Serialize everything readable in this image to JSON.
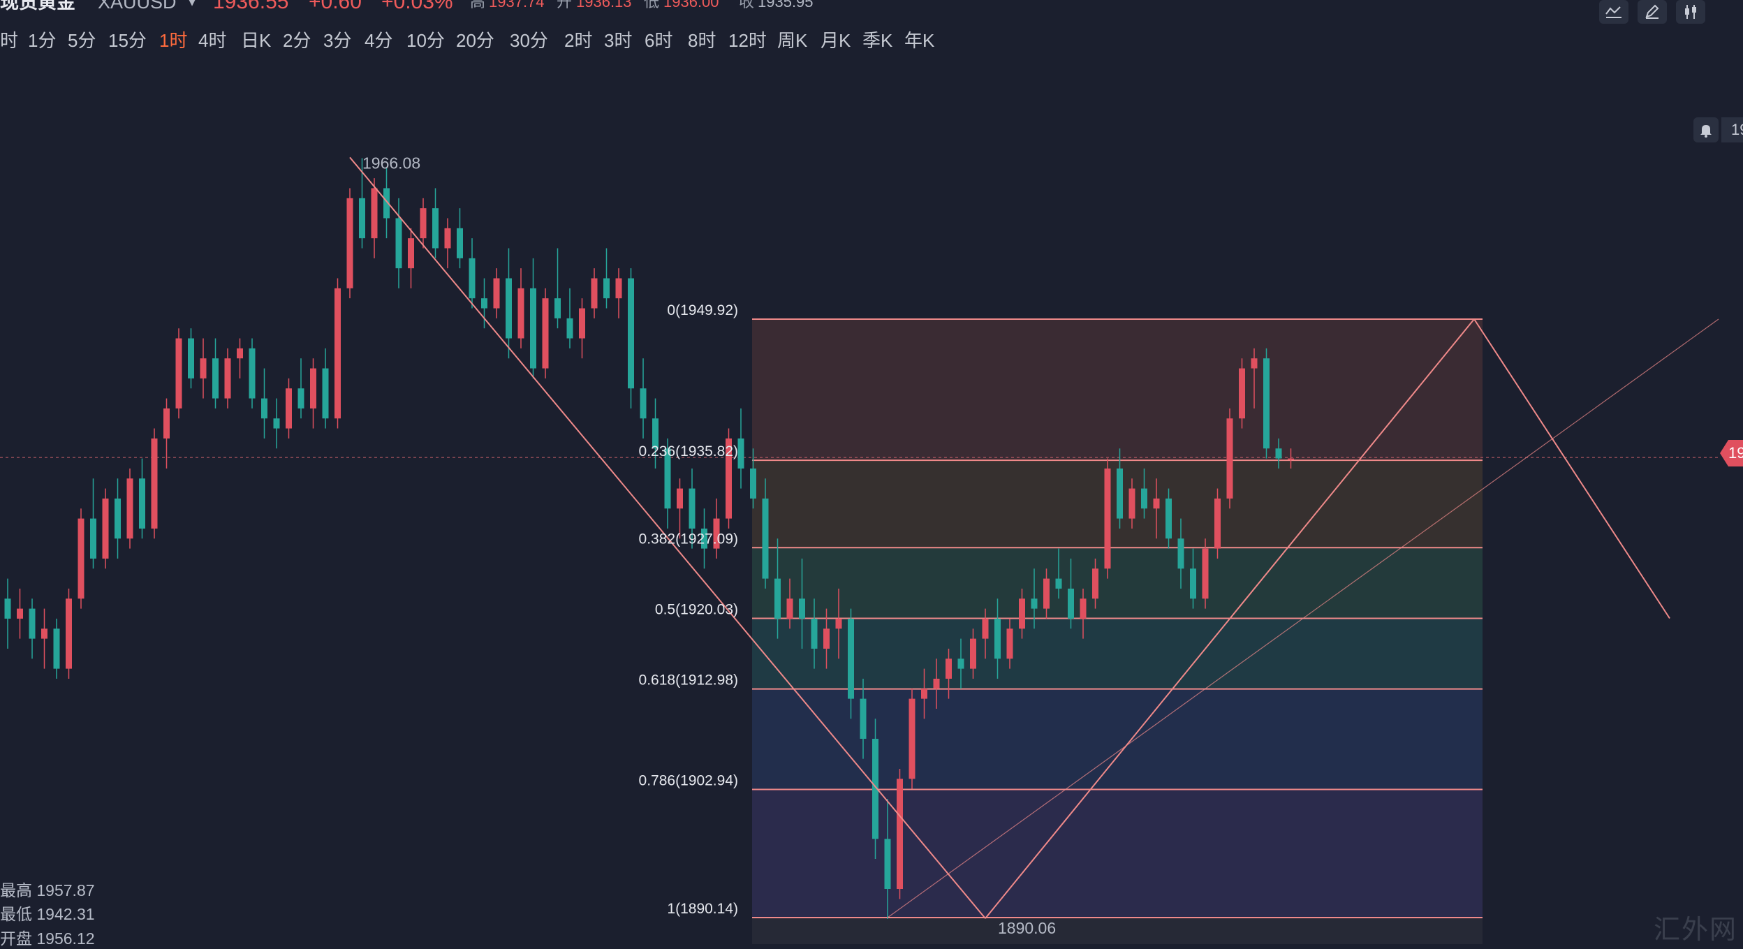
{
  "header": {
    "title": "现货黄金",
    "symbol": "XAUUSD",
    "price": "1936.55",
    "change": "+0.60",
    "change_pct": "+0.03%",
    "high_label": "高",
    "high": "1937.74",
    "open_label": "开",
    "open": "1936.13",
    "low_label": "低",
    "low": "1936.00",
    "close_label": "收",
    "close": "1935.95"
  },
  "periods": [
    "时",
    "1分",
    "5分",
    "15分",
    "1时",
    "4时",
    "日K",
    "2分",
    "3分",
    "4分",
    "10分",
    "20分",
    "30分",
    "2时",
    "3时",
    "6时",
    "8时",
    "12时",
    "周K",
    "月K",
    "季K",
    "年K"
  ],
  "active_period": "1时",
  "toolbar": {
    "icons": [
      "indicator-icon",
      "pencil-icon",
      "candle-icon"
    ]
  },
  "stats": {
    "high_label": "最高",
    "high": "1957.87",
    "low_label": "最低",
    "low": "1942.31",
    "open_label": "开盘",
    "open": "1956.12"
  },
  "right_axis": {
    "current_price_tag": "19",
    "bell_tag": "19"
  },
  "watermark": "汇外网",
  "colors": {
    "background": "#1b1f2e",
    "up": "#e0505f",
    "down": "#26a69a",
    "accent": "#ff6b3d",
    "fib_line": "#f08a8a"
  },
  "chart_data": {
    "type": "candlestick",
    "title": "",
    "xlabel": "",
    "ylabel": "",
    "ylim": [
      1885,
      1970
    ],
    "current_price": 1935.82,
    "annotations": [
      {
        "text": "1966.08",
        "price": 1966.08,
        "kind": "high"
      },
      {
        "text": "1890.06",
        "price": 1890.06,
        "kind": "low"
      }
    ],
    "fibonacci": {
      "high": 1949.92,
      "low": 1890.14,
      "levels": [
        {
          "ratio": 0,
          "price": 1949.92,
          "label": "0(1949.92)",
          "fill": "#3a2b33"
        },
        {
          "ratio": 0.236,
          "price": 1935.82,
          "label": "0.236(1935.82)",
          "fill": "#36302f"
        },
        {
          "ratio": 0.382,
          "price": 1927.09,
          "label": "0.382(1927.09)",
          "fill": "#233a3b"
        },
        {
          "ratio": 0.5,
          "price": 1920.03,
          "label": "0.5(1920.03)",
          "fill": "#1f3a44"
        },
        {
          "ratio": 0.618,
          "price": 1912.98,
          "label": "0.618(1912.98)",
          "fill": "#222e4c"
        },
        {
          "ratio": 0.786,
          "price": 1902.94,
          "label": "0.786(1902.94)",
          "fill": "#2b2b4c"
        },
        {
          "ratio": 1,
          "price": 1890.14,
          "label": "1(1890.14)",
          "fill": "#262936"
        }
      ]
    },
    "trend_lines": [
      {
        "from": [
          28,
          1966.08
        ],
        "to": [
          80,
          1890.06
        ]
      },
      {
        "from": [
          80,
          1890.06
        ],
        "to": [
          120,
          1949.92
        ]
      },
      {
        "from": [
          120,
          1949.92
        ],
        "to": [
          136,
          1920.03
        ]
      },
      {
        "from": [
          72,
          1890.14
        ],
        "to": [
          140,
          1949.92
        ]
      }
    ],
    "candles": [
      [
        1922,
        1924,
        1917,
        1920
      ],
      [
        1920,
        1923,
        1918,
        1921
      ],
      [
        1921,
        1922,
        1916,
        1918
      ],
      [
        1918,
        1921,
        1915,
        1919
      ],
      [
        1919,
        1920,
        1914,
        1915
      ],
      [
        1915,
        1923,
        1914,
        1922
      ],
      [
        1922,
        1931,
        1921,
        1930
      ],
      [
        1930,
        1934,
        1925,
        1926
      ],
      [
        1926,
        1933,
        1925,
        1932
      ],
      [
        1932,
        1934,
        1926,
        1928
      ],
      [
        1928,
        1935,
        1927,
        1934
      ],
      [
        1934,
        1936,
        1928,
        1929
      ],
      [
        1929,
        1939,
        1928,
        1938
      ],
      [
        1938,
        1942,
        1935,
        1941
      ],
      [
        1941,
        1949,
        1940,
        1948
      ],
      [
        1948,
        1949,
        1943,
        1944
      ],
      [
        1944,
        1948,
        1942,
        1946
      ],
      [
        1946,
        1948,
        1941,
        1942
      ],
      [
        1942,
        1947,
        1941,
        1946
      ],
      [
        1946,
        1948,
        1944,
        1947
      ],
      [
        1947,
        1948,
        1941,
        1942
      ],
      [
        1942,
        1945,
        1938,
        1940
      ],
      [
        1940,
        1942,
        1937,
        1939
      ],
      [
        1939,
        1944,
        1938,
        1943
      ],
      [
        1943,
        1946,
        1940,
        1941
      ],
      [
        1941,
        1946,
        1939,
        1945
      ],
      [
        1945,
        1947,
        1939,
        1940
      ],
      [
        1940,
        1954,
        1939,
        1953
      ],
      [
        1953,
        1963,
        1952,
        1962
      ],
      [
        1962,
        1966,
        1957,
        1958
      ],
      [
        1958,
        1964,
        1956,
        1963
      ],
      [
        1963,
        1965,
        1958,
        1960
      ],
      [
        1960,
        1962,
        1953,
        1955
      ],
      [
        1955,
        1959,
        1953,
        1958
      ],
      [
        1958,
        1962,
        1957,
        1961
      ],
      [
        1961,
        1963,
        1956,
        1957
      ],
      [
        1957,
        1960,
        1955,
        1959
      ],
      [
        1959,
        1961,
        1955,
        1956
      ],
      [
        1956,
        1958,
        1951,
        1952
      ],
      [
        1952,
        1954,
        1949,
        1951
      ],
      [
        1951,
        1955,
        1950,
        1954
      ],
      [
        1954,
        1957,
        1946,
        1948
      ],
      [
        1948,
        1955,
        1947,
        1953
      ],
      [
        1953,
        1956,
        1944,
        1945
      ],
      [
        1945,
        1953,
        1944,
        1952
      ],
      [
        1952,
        1957,
        1949,
        1950
      ],
      [
        1950,
        1953,
        1947,
        1948
      ],
      [
        1948,
        1952,
        1946,
        1951
      ],
      [
        1951,
        1955,
        1950,
        1954
      ],
      [
        1954,
        1957,
        1951,
        1952
      ],
      [
        1952,
        1955,
        1950,
        1954
      ],
      [
        1954,
        1955,
        1941,
        1943
      ],
      [
        1943,
        1946,
        1938,
        1940
      ],
      [
        1940,
        1942,
        1935,
        1937
      ],
      [
        1937,
        1938,
        1929,
        1931
      ],
      [
        1931,
        1934,
        1928,
        1933
      ],
      [
        1933,
        1935,
        1927,
        1929
      ],
      [
        1929,
        1931,
        1925,
        1927
      ],
      [
        1927,
        1932,
        1926,
        1930
      ],
      [
        1930,
        1939,
        1929,
        1938
      ],
      [
        1938,
        1941,
        1933,
        1935
      ],
      [
        1935,
        1937,
        1931,
        1932
      ],
      [
        1932,
        1934,
        1923,
        1924
      ],
      [
        1924,
        1928,
        1918,
        1920
      ],
      [
        1920,
        1924,
        1919,
        1922
      ],
      [
        1922,
        1926,
        1917,
        1920
      ],
      [
        1920,
        1922,
        1915,
        1917
      ],
      [
        1917,
        1921,
        1915,
        1919
      ],
      [
        1919,
        1923,
        1916,
        1920
      ],
      [
        1920,
        1921,
        1910,
        1912
      ],
      [
        1912,
        1914,
        1906,
        1908
      ],
      [
        1908,
        1910,
        1896,
        1898
      ],
      [
        1898,
        1902,
        1890,
        1893
      ],
      [
        1893,
        1905,
        1892,
        1904
      ],
      [
        1904,
        1913,
        1903,
        1912
      ],
      [
        1912,
        1915,
        1910,
        1913
      ],
      [
        1913,
        1916,
        1911,
        1914
      ],
      [
        1914,
        1917,
        1912,
        1916
      ],
      [
        1916,
        1918,
        1913,
        1915
      ],
      [
        1915,
        1919,
        1914,
        1918
      ],
      [
        1918,
        1921,
        1916,
        1920
      ],
      [
        1920,
        1922,
        1914,
        1916
      ],
      [
        1916,
        1920,
        1915,
        1919
      ],
      [
        1919,
        1923,
        1918,
        1922
      ],
      [
        1922,
        1925,
        1919,
        1921
      ],
      [
        1921,
        1925,
        1920,
        1924
      ],
      [
        1924,
        1927,
        1922,
        1923
      ],
      [
        1923,
        1926,
        1919,
        1920
      ],
      [
        1920,
        1923,
        1918,
        1922
      ],
      [
        1922,
        1926,
        1921,
        1925
      ],
      [
        1925,
        1936,
        1924,
        1935
      ],
      [
        1935,
        1937,
        1929,
        1930
      ],
      [
        1930,
        1934,
        1929,
        1933
      ],
      [
        1933,
        1935,
        1930,
        1931
      ],
      [
        1931,
        1934,
        1928,
        1932
      ],
      [
        1932,
        1933,
        1927,
        1928
      ],
      [
        1928,
        1930,
        1923,
        1925
      ],
      [
        1925,
        1927,
        1921,
        1922
      ],
      [
        1922,
        1928,
        1921,
        1927
      ],
      [
        1927,
        1933,
        1926,
        1932
      ],
      [
        1932,
        1941,
        1931,
        1940
      ],
      [
        1940,
        1946,
        1939,
        1945
      ],
      [
        1945,
        1947,
        1941,
        1946
      ],
      [
        1946,
        1947,
        1936,
        1937
      ],
      [
        1937,
        1938,
        1935,
        1936
      ],
      [
        1936,
        1937,
        1935,
        1936
      ]
    ]
  }
}
